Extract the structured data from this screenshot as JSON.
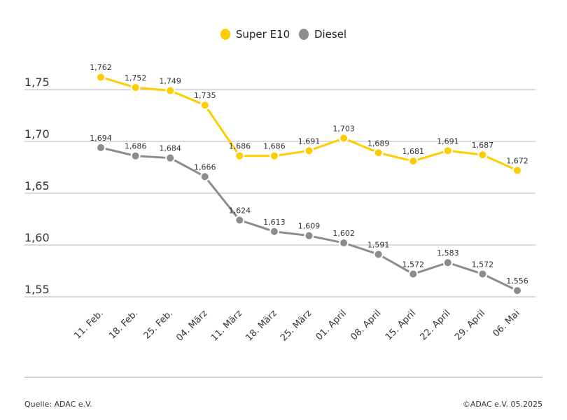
{
  "chart_data": {
    "type": "line",
    "categories": [
      "11. Feb.",
      "18. Feb.",
      "25. Feb.",
      "04. März",
      "11. März",
      "18. März",
      "25. März",
      "01. April",
      "08. April",
      "15. April",
      "22. April",
      "29. April",
      "06. Mai"
    ],
    "series": [
      {
        "name": "Super E10",
        "color": "#ffcc00",
        "values": [
          1.762,
          1.752,
          1.749,
          1.735,
          1.686,
          1.686,
          1.691,
          1.703,
          1.689,
          1.681,
          1.691,
          1.687,
          1.672
        ],
        "labels": [
          "1,762",
          "1,752",
          "1,749",
          "1,735",
          "1,686",
          "1,686",
          "1,691",
          "1,703",
          "1,689",
          "1,681",
          "1,691",
          "1,687",
          "1,672"
        ]
      },
      {
        "name": "Diesel",
        "color": "#8c8c8c",
        "values": [
          1.694,
          1.686,
          1.684,
          1.666,
          1.624,
          1.613,
          1.609,
          1.602,
          1.591,
          1.572,
          1.583,
          1.572,
          1.556
        ],
        "labels": [
          "1,694",
          "1,686",
          "1,684",
          "1,666",
          "1,624",
          "1,613",
          "1,609",
          "1,602",
          "1,591",
          "1,572",
          "1,583",
          "1,572",
          "1,556"
        ]
      }
    ],
    "yticks": [
      1.75,
      1.7,
      1.65,
      1.6,
      1.55
    ],
    "ytick_labels": [
      "1,75",
      "1,70",
      "1,65",
      "1,60",
      "1,55"
    ],
    "ylim": [
      1.55,
      1.75
    ],
    "grid": true,
    "legend": "top-center"
  },
  "footer": {
    "source": "Quelle: ADAC e.V.",
    "copyright": "©ADAC e.V. 05.2025"
  }
}
